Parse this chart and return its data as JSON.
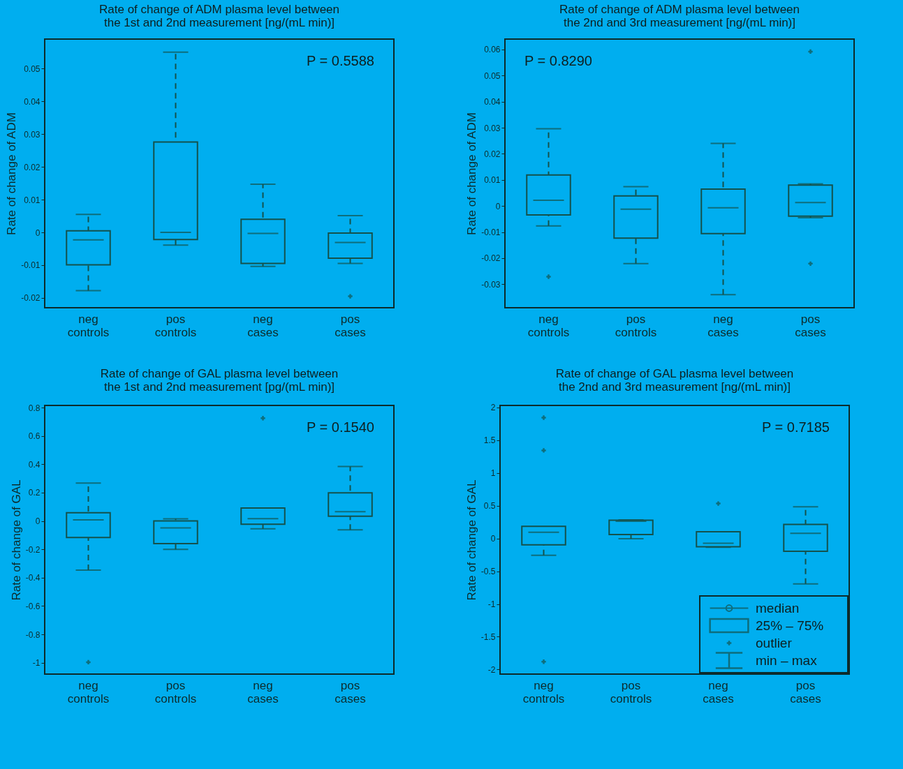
{
  "chart_data": [
    {
      "type": "box",
      "title": "Rate of change of ADM plasma level between\nthe 1st and 2nd measurement [ng/(mL min)]",
      "ylabel": "Rate of change of ADM",
      "categories": [
        "neg controls",
        "pos controls",
        "neg cases",
        "pos cases"
      ],
      "ylim": [
        -0.023,
        0.059
      ],
      "yticks": [
        -0.02,
        -0.01,
        0,
        0.01,
        0.02,
        0.03,
        0.04,
        0.05
      ],
      "marker": "cross",
      "annotations": [
        "P = 0.5588"
      ],
      "series": [
        {
          "color": "#14524c",
          "boxes": [
            {
              "low": -0.0178,
              "q1": -0.0099,
              "median": -0.0023,
              "q3": 0.0005,
              "high": 0.0055
            },
            {
              "low": -0.0039,
              "q1": -0.0022,
              "median": 0,
              "q3": 0.0276,
              "high": 0.055
            },
            {
              "low": -0.0104,
              "q1": -0.0095,
              "median": -0.0003,
              "q3": 0.004,
              "high": 0.0147
            },
            {
              "low": -0.0095,
              "q1": -0.0079,
              "median": -0.0031,
              "q3": -0.0002,
              "high": 0.0051,
              "outliers": [
                -0.0195
              ]
            }
          ]
        }
      ]
    },
    {
      "type": "box",
      "title": "Rate of change of ADM plasma level between\nthe 2nd and 3rd measurement [ng/(mL min)]",
      "ylabel": "Rate of change of ADM",
      "categories": [
        "neg controls",
        "pos controls",
        "neg cases",
        "pos cases"
      ],
      "ylim": [
        -0.039,
        0.064
      ],
      "yticks": [
        -0.03,
        -0.02,
        -0.01,
        0,
        0.01,
        0.02,
        0.03,
        0.04,
        0.05,
        0.06
      ],
      "marker": "cross",
      "annotations": [
        "P = 0.8290"
      ],
      "series": [
        {
          "color": "#14524c",
          "boxes": [
            {
              "low": -0.0076,
              "q1": -0.0034,
              "median": 0.0022,
              "q3": 0.0119,
              "high": 0.0296,
              "outliers": [
                -0.0271
              ]
            },
            {
              "low": -0.0221,
              "q1": -0.0123,
              "median": -0.0012,
              "q3": 0.0039,
              "high": 0.0074
            },
            {
              "low": -0.034,
              "q1": -0.0106,
              "median": -0.0007,
              "q3": 0.0065,
              "high": 0.024
            },
            {
              "low": -0.0045,
              "q1": -0.0039,
              "median": 0.0013,
              "q3": 0.008,
              "high": 0.0085,
              "outliers": [
                0.0592,
                -0.0221
              ]
            }
          ]
        }
      ]
    },
    {
      "type": "box",
      "title": "Rate of change of GAL plasma level between\nthe 1st and 2nd measurement [pg/(mL min)]",
      "ylabel": "Rate of change of GAL",
      "categories": [
        "neg controls",
        "pos controls",
        "neg cases",
        "pos cases"
      ],
      "ylim": [
        -1.08,
        0.815
      ],
      "yticks": [
        -1,
        -0.8,
        -0.6,
        -0.4,
        -0.2,
        0,
        0.2,
        0.4,
        0.6,
        0.8
      ],
      "marker": "cross",
      "annotations": [
        "P = 0.1540"
      ],
      "series": [
        {
          "color": "#14524c",
          "boxes": [
            {
              "low": -0.346,
              "q1": -0.117,
              "median": 0.008,
              "q3": 0.058,
              "high": 0.267,
              "outliers": [
                -0.996
              ]
            },
            {
              "low": -0.2,
              "q1": -0.16,
              "median": -0.049,
              "q3": 0,
              "high": 0.015
            },
            {
              "low": -0.055,
              "q1": -0.023,
              "median": 0.017,
              "q3": 0.092,
              "high": 0.092,
              "outliers": [
                0.725
              ]
            },
            {
              "low": -0.062,
              "q1": 0.034,
              "median": 0.066,
              "q3": 0.198,
              "high": 0.384
            }
          ]
        }
      ]
    },
    {
      "type": "box",
      "title": "Rate of change of GAL plasma level between\nthe 2nd and 3rd measurement [ng/(mL min)]",
      "ylabel": "Rate of change of GAL",
      "categories": [
        "neg controls",
        "pos controls",
        "neg cases",
        "pos cases"
      ],
      "ylim": [
        -2.07,
        2.03
      ],
      "yticks": [
        -2,
        -1.5,
        -1,
        -0.5,
        0,
        0.5,
        1,
        1.5,
        2
      ],
      "marker": "cross",
      "annotations": [
        "P = 0.7185",
        "median",
        "25% – 75%",
        "outlier",
        "min – max"
      ],
      "series": [
        {
          "color": "#14524c",
          "boxes": [
            {
              "low": -0.258,
              "q1": -0.098,
              "median": 0.094,
              "q3": 0.184,
              "high": 0.184,
              "outliers": [
                1.844,
                1.344,
                -1.881
              ]
            },
            {
              "low": -0.004,
              "q1": 0.061,
              "median": 0.262,
              "q3": 0.279,
              "high": 0.283
            },
            {
              "low": -0.135,
              "q1": -0.127,
              "median": -0.074,
              "q3": 0.102,
              "high": 0.102,
              "outliers": [
                0.533
              ]
            },
            {
              "low": -0.693,
              "q1": -0.197,
              "median": 0.078,
              "q3": 0.213,
              "high": 0.484
            }
          ]
        }
      ]
    }
  ]
}
